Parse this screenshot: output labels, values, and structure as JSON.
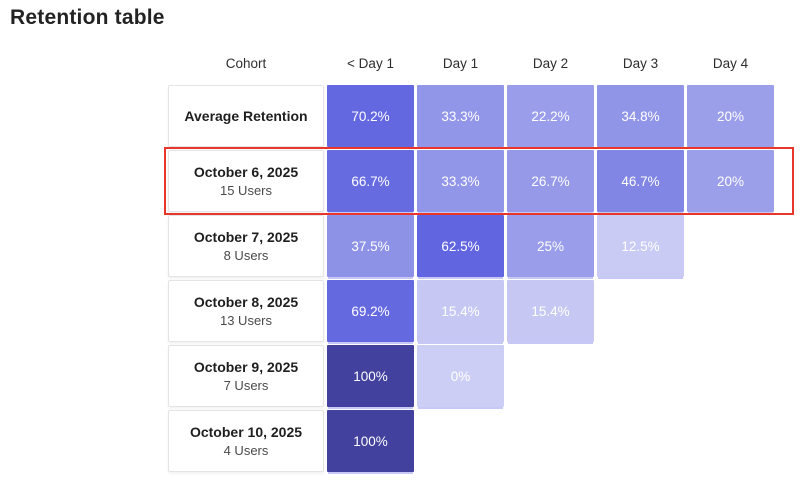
{
  "title": "Retention table",
  "table": {
    "headers": [
      "Cohort",
      "< Day 1",
      "Day 1",
      "Day 2",
      "Day 3",
      "Day 4"
    ],
    "highlight_color": "#e8362a",
    "rows": [
      {
        "label": "Average Retention",
        "sublabel": "",
        "cells": [
          {
            "value": "70.2%",
            "color": "#6468e0"
          },
          {
            "value": "33.3%",
            "color": "#9296e8"
          },
          {
            "value": "22.2%",
            "color": "#9a9eea"
          },
          {
            "value": "34.8%",
            "color": "#9195e7"
          },
          {
            "value": "20%",
            "color": "#9b9fea"
          }
        ]
      },
      {
        "label": "October 6, 2025",
        "sublabel": "15 Users",
        "cells": [
          {
            "value": "66.7%",
            "color": "#676be0"
          },
          {
            "value": "33.3%",
            "color": "#9296e8"
          },
          {
            "value": "26.7%",
            "color": "#9599e8"
          },
          {
            "value": "46.7%",
            "color": "#8185e3"
          },
          {
            "value": "20%",
            "color": "#9b9fea"
          }
        ]
      },
      {
        "label": "October 7, 2025",
        "sublabel": "8 Users",
        "cells": [
          {
            "value": "37.5%",
            "color": "#8e92e6"
          },
          {
            "value": "62.5%",
            "color": "#6165df"
          },
          {
            "value": "25%",
            "color": "#999dea"
          },
          {
            "value": "12.5%",
            "color": "#c9cbf4"
          }
        ]
      },
      {
        "label": "October 8, 2025",
        "sublabel": "13 Users",
        "cells": [
          {
            "value": "69.2%",
            "color": "#6569e0"
          },
          {
            "value": "15.4%",
            "color": "#c6c8f3"
          },
          {
            "value": "15.4%",
            "color": "#c6c8f3"
          }
        ]
      },
      {
        "label": "October 9, 2025",
        "sublabel": "7 Users",
        "cells": [
          {
            "value": "100%",
            "color": "#42419e"
          },
          {
            "value": "0%",
            "color": "#cdcef5"
          }
        ]
      },
      {
        "label": "October 10, 2025",
        "sublabel": "4 Users",
        "cells": [
          {
            "value": "100%",
            "color": "#42419e"
          }
        ]
      }
    ]
  },
  "chart_data": {
    "type": "heatmap",
    "title": "Retention table",
    "columns": [
      "< Day 1",
      "Day 1",
      "Day 2",
      "Day 3",
      "Day 4"
    ],
    "rows": [
      "Average Retention",
      "October 6, 2025",
      "October 7, 2025",
      "October 8, 2025",
      "October 9, 2025",
      "October 10, 2025"
    ],
    "cohort_sizes": [
      null,
      15,
      8,
      13,
      7,
      4
    ],
    "values_percent": [
      [
        70.2,
        33.3,
        22.2,
        34.8,
        20
      ],
      [
        66.7,
        33.3,
        26.7,
        46.7,
        20
      ],
      [
        37.5,
        62.5,
        25,
        12.5,
        null
      ],
      [
        69.2,
        15.4,
        15.4,
        null,
        null
      ],
      [
        100,
        0,
        null,
        null,
        null
      ],
      [
        100,
        null,
        null,
        null,
        null
      ]
    ],
    "color_scale": {
      "low": "#cdcef5",
      "high": "#42419e"
    },
    "annotation": "Row for October 6, 2025 cohort is outlined with a red border"
  }
}
